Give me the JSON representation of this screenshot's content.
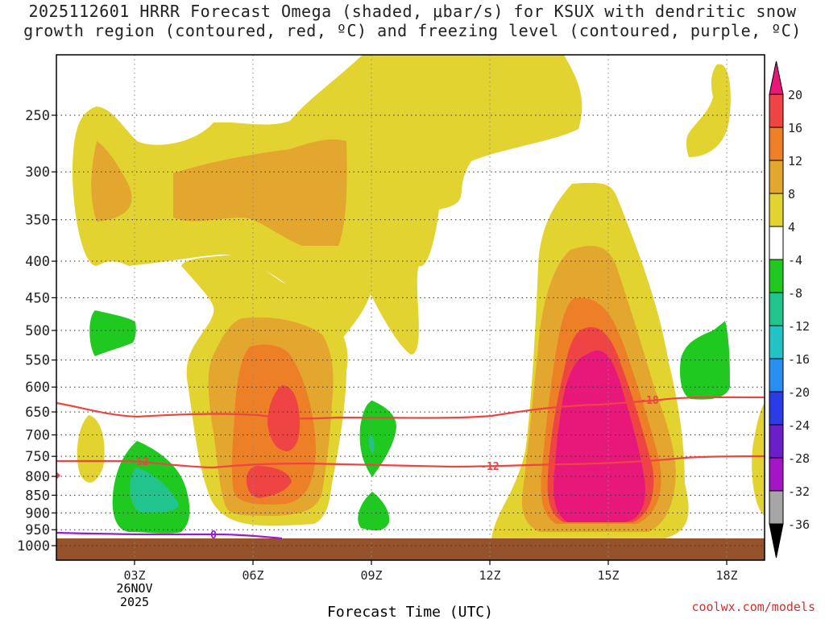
{
  "title": {
    "line1": "2025112601 HRRR Forecast Omega (shaded, μbar/s) for KSUX with dendritic snow",
    "line2": "growth region (contoured, red, ºC) and freezing level (contoured, purple, ºC)"
  },
  "credit": "coolwx.com/models",
  "chart_data": {
    "type": "heatmap",
    "title": "2025112601 HRRR Forecast Omega (shaded, μbar/s) for KSUX with dendritic snow growth region (contoured, red, ºC) and freezing level (contoured, purple, ºC)",
    "xlabel": "Forecast Time (UTC)",
    "ylabel": "",
    "x_ticks": [
      "03Z",
      "06Z",
      "09Z",
      "12Z",
      "15Z",
      "18Z"
    ],
    "x_date_label": [
      "26NOV",
      "2025"
    ],
    "y_ticks": [
      250,
      300,
      350,
      400,
      450,
      500,
      550,
      600,
      650,
      700,
      750,
      800,
      850,
      900,
      950,
      1000
    ],
    "y_scale": "log-pressure",
    "grid": true,
    "colorbar": {
      "labels": [
        "20",
        "16",
        "12",
        "8",
        "4",
        "-4",
        "-8",
        "-12",
        "-16",
        "-20",
        "-24",
        "-28",
        "-32",
        "-36"
      ],
      "bins": [
        {
          "range": ">20",
          "color": "#e8177a"
        },
        {
          "range": "16 to 20",
          "color": "#ee4444"
        },
        {
          "range": "12 to 16",
          "color": "#ed8026"
        },
        {
          "range": "8 to 12",
          "color": "#e3a62e"
        },
        {
          "range": "4 to 8",
          "color": "#e3d331"
        },
        {
          "range": "-4 to 4",
          "color": "#ffffff"
        },
        {
          "range": "-8 to -4",
          "color": "#1fc91f"
        },
        {
          "range": "-12 to -8",
          "color": "#22c48e"
        },
        {
          "range": "-16 to -12",
          "color": "#21c3c6"
        },
        {
          "range": "-20 to -16",
          "color": "#2a8ef0"
        },
        {
          "range": "-24 to -20",
          "color": "#2a3ce6"
        },
        {
          "range": "-28 to -24",
          "color": "#6a1fc8"
        },
        {
          "range": "-32 to -28",
          "color": "#a315c7"
        },
        {
          "range": "-36 to -32",
          "color": "#a6a6a6"
        },
        {
          "range": "<-36",
          "color": "#000000"
        }
      ]
    },
    "contours": [
      {
        "label": "-18",
        "color": "#ee4444"
      },
      {
        "label": "-12",
        "color": "#ee4444"
      },
      {
        "label": "0",
        "color": "#9a1ad0"
      }
    ],
    "ground_color": "#96522a"
  }
}
